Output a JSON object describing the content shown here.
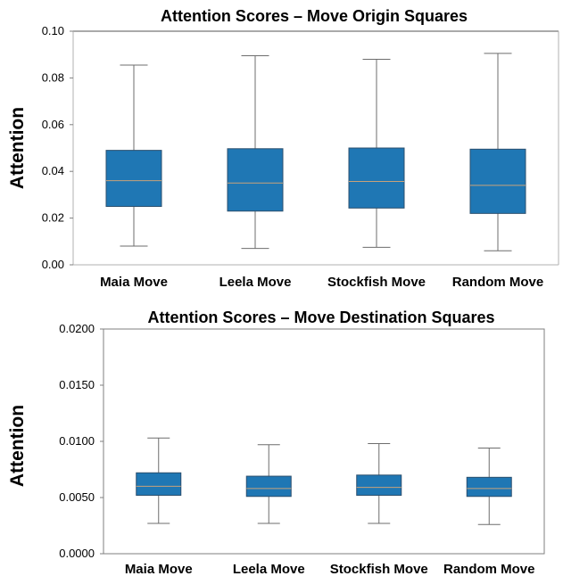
{
  "chart_data": [
    {
      "type": "box",
      "title": "Attention Scores – Move Origin Squares",
      "ylabel": "Attention",
      "xlabel": "",
      "ylim": [
        0.0,
        0.1
      ],
      "yticks": [
        "0.00",
        "0.02",
        "0.04",
        "0.06",
        "0.08",
        "0.10"
      ],
      "categories": [
        "Maia Move",
        "Leela Move",
        "Stockfish Move",
        "Random Move"
      ],
      "box_color": "#1f77b4",
      "boxes": [
        {
          "whisker_low": 0.008,
          "q1": 0.025,
          "median": 0.036,
          "q3": 0.049,
          "whisker_high": 0.0855
        },
        {
          "whisker_low": 0.007,
          "q1": 0.023,
          "median": 0.035,
          "q3": 0.0497,
          "whisker_high": 0.0895
        },
        {
          "whisker_low": 0.0075,
          "q1": 0.0243,
          "median": 0.0357,
          "q3": 0.05,
          "whisker_high": 0.088
        },
        {
          "whisker_low": 0.006,
          "q1": 0.022,
          "median": 0.034,
          "q3": 0.0495,
          "whisker_high": 0.0905
        }
      ]
    },
    {
      "type": "box",
      "title": "Attention Scores – Move Destination Squares",
      "ylabel": "Attention",
      "xlabel": "",
      "ylim": [
        0.0,
        0.02
      ],
      "yticks": [
        "0.0000",
        "0.0050",
        "0.0100",
        "0.0150",
        "0.0200"
      ],
      "categories": [
        "Maia Move",
        "Leela Move",
        "Stockfish Move",
        "Random Move"
      ],
      "box_color": "#1f77b4",
      "boxes": [
        {
          "whisker_low": 0.0027,
          "q1": 0.0052,
          "median": 0.006,
          "q3": 0.0072,
          "whisker_high": 0.0103
        },
        {
          "whisker_low": 0.0027,
          "q1": 0.0051,
          "median": 0.0058,
          "q3": 0.0069,
          "whisker_high": 0.0097
        },
        {
          "whisker_low": 0.0027,
          "q1": 0.0052,
          "median": 0.0059,
          "q3": 0.007,
          "whisker_high": 0.0098
        },
        {
          "whisker_low": 0.0026,
          "q1": 0.0051,
          "median": 0.0058,
          "q3": 0.0068,
          "whisker_high": 0.0094
        }
      ]
    }
  ]
}
